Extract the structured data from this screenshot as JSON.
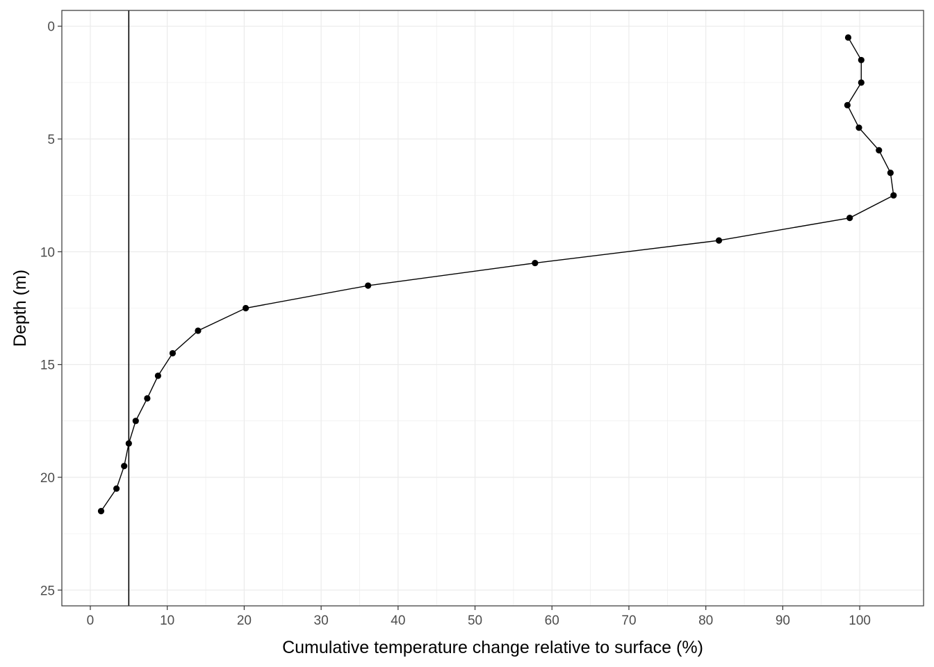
{
  "chart_data": {
    "type": "line",
    "title": "",
    "xlabel": "Cumulative temperature change relative to surface (%)",
    "ylabel": "Depth (m)",
    "xlim": [
      -3.7,
      108.3
    ],
    "ylim": [
      -0.7,
      25.7
    ],
    "y_reversed": true,
    "grid": true,
    "legend": "none",
    "x_ticks": [
      0,
      10,
      20,
      30,
      40,
      50,
      60,
      70,
      80,
      90,
      100
    ],
    "y_ticks": [
      0,
      5,
      10,
      15,
      20,
      25
    ],
    "vline": 5,
    "series": [
      {
        "x": [
          98.5,
          100.2,
          100.2,
          98.4,
          99.9,
          102.5,
          104.0,
          104.4,
          98.7,
          81.7,
          57.8,
          36.1,
          20.2,
          14.0,
          10.7,
          8.8,
          7.4,
          5.9,
          5.0,
          4.4,
          3.4,
          1.4
        ],
        "y": [
          0.5,
          1.5,
          2.5,
          3.5,
          4.5,
          5.5,
          6.5,
          7.5,
          8.5,
          9.5,
          10.5,
          11.5,
          12.5,
          13.5,
          14.5,
          15.5,
          16.5,
          17.5,
          18.5,
          19.5,
          20.5,
          21.5
        ],
        "color": "#000000"
      }
    ]
  }
}
